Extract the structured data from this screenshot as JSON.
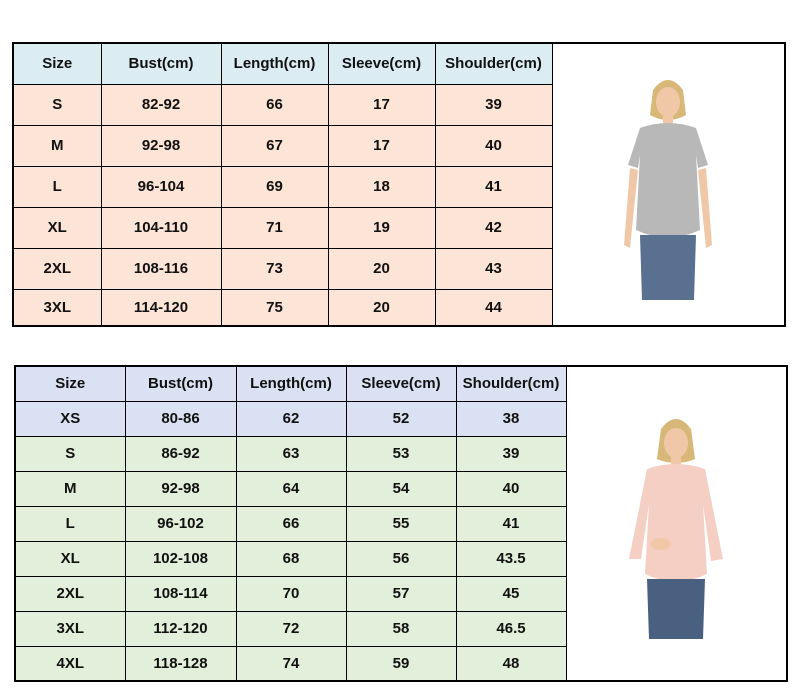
{
  "table1": {
    "headers": [
      "Size",
      "Bust(cm)",
      "Length(cm)",
      "Sleeve(cm)",
      "Shoulder(cm)"
    ],
    "rows": [
      [
        "S",
        "82-92",
        "66",
        "17",
        "39"
      ],
      [
        "M",
        "92-98",
        "67",
        "17",
        "40"
      ],
      [
        "L",
        "96-104",
        "69",
        "18",
        "41"
      ],
      [
        "XL",
        "104-110",
        "71",
        "19",
        "42"
      ],
      [
        "2XL",
        "108-116",
        "73",
        "20",
        "43"
      ],
      [
        "3XL",
        "114-120",
        "75",
        "20",
        "44"
      ]
    ],
    "header_color": "#dcecf3",
    "row_color": "#fce4d6",
    "image": "woman-gray-short-sleeve-nursing-top"
  },
  "table2": {
    "headers": [
      "Size",
      "Bust(cm)",
      "Length(cm)",
      "Sleeve(cm)",
      "Shoulder(cm)"
    ],
    "rows": [
      [
        "XS",
        "80-86",
        "62",
        "52",
        "38"
      ],
      [
        "S",
        "86-92",
        "63",
        "53",
        "39"
      ],
      [
        "M",
        "92-98",
        "64",
        "54",
        "40"
      ],
      [
        "L",
        "96-102",
        "66",
        "55",
        "41"
      ],
      [
        "XL",
        "102-108",
        "68",
        "56",
        "43.5"
      ],
      [
        "2XL",
        "108-114",
        "70",
        "57",
        "45"
      ],
      [
        "3XL",
        "112-120",
        "72",
        "58",
        "46.5"
      ],
      [
        "4XL",
        "118-128",
        "74",
        "59",
        "48"
      ]
    ],
    "header_color": "#d9e1f2",
    "row_color": "#e2efda",
    "image": "woman-pink-long-sleeve-nursing-top"
  }
}
